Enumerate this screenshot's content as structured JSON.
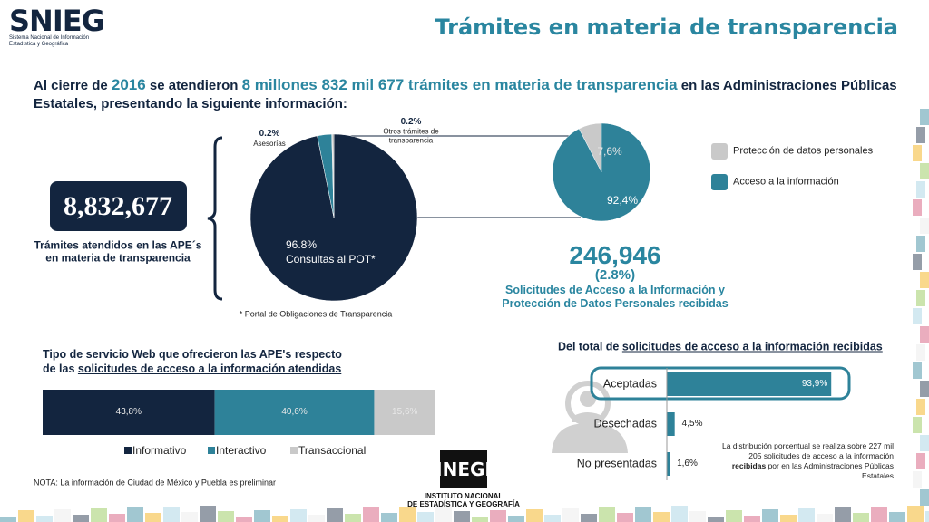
{
  "header": {
    "logo": "SNIEG",
    "logo_line1": "Sistema Nacional de Información",
    "logo_line2": "Estadística y Geográfica",
    "title": "Trámites en materia de transparencia"
  },
  "intro": {
    "part1": "Al cierre de ",
    "year": "2016",
    "part2": " se atendieron ",
    "highlight": "8 millones 832 mil 677 trámites en materia de transparencia",
    "part3": " en las Administraciones Públicas Estatales, presentando la siguiente información:"
  },
  "total": {
    "value": "8,832,677",
    "label": "Trámites atendidos en las APE´s en materia de transparencia"
  },
  "chart_data": [
    {
      "type": "pie",
      "categories": [
        "Consultas al POT*",
        "Solicitudes de Acceso a la Información y Protección de Datos Personales recibidas",
        "Asesorías",
        "Otros trámites de transparencia"
      ],
      "values": [
        96.8,
        2.8,
        0.2,
        0.2
      ],
      "value_labels": [
        "96.8%",
        "(2.8%)",
        "0.2%",
        "0.2%"
      ],
      "colors": [
        "#13253f",
        "#2e8299",
        "#bfbfbf",
        "#8c8c8c"
      ],
      "count": "246,946",
      "footnote": "* Portal de Obligaciones de Transparencia"
    },
    {
      "type": "pie",
      "categories": [
        "Protección de datos personales",
        "Acceso a la información"
      ],
      "values": [
        7.6,
        92.4
      ],
      "value_labels": [
        "7,6%",
        "92,4%"
      ],
      "colors": [
        "#c9c9c9",
        "#2e8299"
      ],
      "legend": "right"
    },
    {
      "type": "stacked_bar",
      "title": "Tipo de servicio Web que ofrecieron las APE's respecto de las ",
      "title_emphasis": "solicitudes de acceso a la información atendidas",
      "series": [
        {
          "name": "Informativo",
          "color": "#13253f",
          "values": [
            43.8
          ],
          "value_labels": [
            "43,8%"
          ]
        },
        {
          "name": "Interactivo",
          "color": "#2e8299",
          "values": [
            40.6
          ],
          "value_labels": [
            "40,6%"
          ]
        },
        {
          "name": "Transaccional",
          "color": "#c9c9c9",
          "values": [
            15.6
          ],
          "value_labels": [
            "15,6%"
          ]
        }
      ],
      "xlim": [
        0,
        100
      ],
      "legend": "bottom"
    },
    {
      "type": "barh",
      "title": "Del total de ",
      "title_emphasis": "solicitudes de acceso a la información recibidas",
      "categories": [
        "Aceptadas",
        "Desechadas",
        "No presentadas"
      ],
      "values": [
        93.9,
        4.5,
        1.6
      ],
      "value_labels": [
        "93,9%",
        "4,5%",
        "1,6%"
      ],
      "color": "#2e8299",
      "xlim": [
        0,
        100
      ],
      "note_part1": "La distribución porcentual se realiza sobre 227 mil 205 solicitudes de acceso a la información ",
      "note_bold": "recibidas",
      "note_part2": " por en las Administraciones Públicas Estatales"
    }
  ],
  "footer": {
    "note": "NOTA: La información de Ciudad de México y Puebla es preliminar",
    "inegi": "INEGI",
    "inegi_line1": "INSTITUTO NACIONAL",
    "inegi_line2": "DE ESTADÍSTICA Y GEOGRAFÍA"
  }
}
